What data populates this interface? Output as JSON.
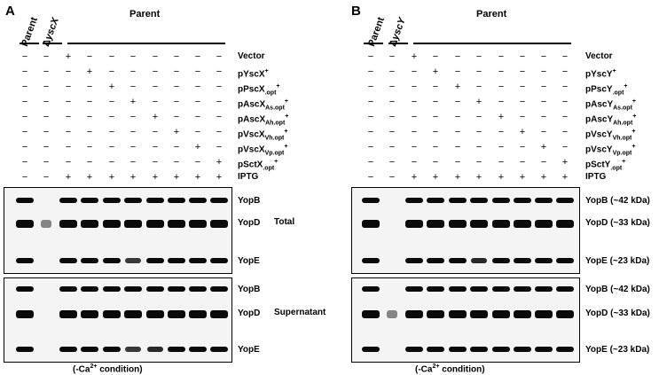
{
  "panels": [
    {
      "id": "A",
      "letter": "A",
      "lane_headers": {
        "parent1": "Parent",
        "mutant_prefix": "Δ",
        "mutant": "yscX",
        "parent_group": "Parent"
      },
      "rows": [
        {
          "label_html": "Vector",
          "symbols": [
            "−",
            "−",
            "+",
            "−",
            "−",
            "−",
            "−",
            "−",
            "−",
            "−"
          ]
        },
        {
          "label_html": "pYscX<sup>+</sup>",
          "symbols": [
            "−",
            "−",
            "−",
            "+",
            "−",
            "−",
            "−",
            "−",
            "−",
            "−"
          ]
        },
        {
          "label_html": "pPscX<sub>.opt</sub><sup>+</sup>",
          "symbols": [
            "−",
            "−",
            "−",
            "−",
            "+",
            "−",
            "−",
            "−",
            "−",
            "−"
          ]
        },
        {
          "label_html": "pAscX<sub>As.opt</sub><sup>+</sup>",
          "symbols": [
            "−",
            "−",
            "−",
            "−",
            "−",
            "+",
            "−",
            "−",
            "−",
            "−"
          ]
        },
        {
          "label_html": "pAscX<sub>Ah.opt</sub><sup>+</sup>",
          "symbols": [
            "−",
            "−",
            "−",
            "−",
            "−",
            "−",
            "+",
            "−",
            "−",
            "−"
          ]
        },
        {
          "label_html": "pVscX<sub>Vh.opt</sub><sup>+</sup>",
          "symbols": [
            "−",
            "−",
            "−",
            "−",
            "−",
            "−",
            "−",
            "+",
            "−",
            "−"
          ]
        },
        {
          "label_html": "pVscX<sub>Vp.opt</sub><sup>+</sup>",
          "symbols": [
            "−",
            "−",
            "−",
            "−",
            "−",
            "−",
            "−",
            "−",
            "+",
            "−"
          ]
        },
        {
          "label_html": "pSctX<sub>.opt</sub><sup>+</sup>",
          "symbols": [
            "−",
            "−",
            "−",
            "−",
            "−",
            "−",
            "−",
            "−",
            "−",
            "+"
          ]
        },
        {
          "label_html": "IPTG",
          "symbols": [
            "−",
            "−",
            "+",
            "+",
            "+",
            "+",
            "+",
            "+",
            "+",
            "+"
          ]
        }
      ],
      "blots": [
        {
          "section_label": "Total",
          "bands": [
            {
              "label": "YopB",
              "lanes": [
                1,
                0,
                1,
                1,
                1,
                1,
                1,
                1,
                1,
                1
              ]
            },
            {
              "label": "YopD",
              "lanes": [
                1,
                0.2,
                1,
                1,
                1,
                1,
                1,
                1,
                1,
                1
              ]
            },
            {
              "label": "YopE",
              "lanes": [
                1,
                0,
                1,
                1,
                1,
                0.7,
                1,
                1,
                1,
                1
              ]
            }
          ]
        },
        {
          "section_label": "Supernatant",
          "bands": [
            {
              "label": "YopB",
              "lanes": [
                1,
                0,
                1,
                1,
                1,
                1,
                1,
                1,
                1,
                1
              ]
            },
            {
              "label": "YopD",
              "lanes": [
                1,
                0,
                1,
                1,
                1,
                1,
                1,
                1,
                1,
                1
              ]
            },
            {
              "label": "YopE",
              "lanes": [
                1,
                0,
                1,
                1,
                1,
                0.7,
                0.8,
                1,
                1,
                1
              ]
            }
          ]
        }
      ],
      "condition": {
        "prefix": "(-Ca",
        "sup": "2+",
        "suffix": " condition)"
      }
    },
    {
      "id": "B",
      "letter": "B",
      "lane_headers": {
        "parent1": "Parent",
        "mutant_prefix": "Δ",
        "mutant": "yscY",
        "parent_group": "Parent"
      },
      "rows": [
        {
          "label_html": "Vector",
          "symbols": [
            "−",
            "−",
            "+",
            "−",
            "−",
            "−",
            "−",
            "−",
            "−",
            "−"
          ]
        },
        {
          "label_html": "pYscY<sup>+</sup>",
          "symbols": [
            "−",
            "−",
            "−",
            "+",
            "−",
            "−",
            "−",
            "−",
            "−",
            "−"
          ]
        },
        {
          "label_html": "pPscY<sub>.opt</sub><sup>+</sup>",
          "symbols": [
            "−",
            "−",
            "−",
            "−",
            "+",
            "−",
            "−",
            "−",
            "−",
            "−"
          ]
        },
        {
          "label_html": "pAscY<sub>As.opt</sub><sup>+</sup>",
          "symbols": [
            "−",
            "−",
            "−",
            "−",
            "−",
            "+",
            "−",
            "−",
            "−",
            "−"
          ]
        },
        {
          "label_html": "pAscY<sub>Ah.opt</sub><sup>+</sup>",
          "symbols": [
            "−",
            "−",
            "−",
            "−",
            "−",
            "−",
            "+",
            "−",
            "−",
            "−"
          ]
        },
        {
          "label_html": "pVscY<sub>Vh.opt</sub><sup>+</sup>",
          "symbols": [
            "−",
            "−",
            "−",
            "−",
            "−",
            "−",
            "−",
            "+",
            "−",
            "−"
          ]
        },
        {
          "label_html": "pVscY<sub>Vp.opt</sub><sup>+</sup>",
          "symbols": [
            "−",
            "−",
            "−",
            "−",
            "−",
            "−",
            "−",
            "−",
            "+",
            "−"
          ]
        },
        {
          "label_html": "pSctY<sub>.opt</sub><sup>+</sup>",
          "symbols": [
            "−",
            "−",
            "−",
            "−",
            "−",
            "−",
            "−",
            "−",
            "−",
            "+"
          ]
        },
        {
          "label_html": "IPTG",
          "symbols": [
            "−",
            "−",
            "+",
            "+",
            "+",
            "+",
            "+",
            "+",
            "+",
            "+"
          ]
        }
      ],
      "blots": [
        {
          "section_label": "",
          "bands": [
            {
              "label": "YopB (~42 kDa)",
              "lanes": [
                1,
                0,
                1,
                1,
                1,
                1,
                1,
                1,
                1,
                1
              ]
            },
            {
              "label": "YopD (~33 kDa)",
              "lanes": [
                1,
                0,
                1,
                1,
                1,
                1,
                1,
                1,
                1,
                1
              ]
            },
            {
              "label": "YopE (~23 kDa)",
              "lanes": [
                1,
                0,
                1,
                1,
                1,
                0.8,
                1,
                1,
                1,
                1
              ]
            }
          ]
        },
        {
          "section_label": "",
          "bands": [
            {
              "label": "YopB (~42 kDa)",
              "lanes": [
                1,
                0,
                1,
                1,
                1,
                1,
                1,
                1,
                1,
                1
              ]
            },
            {
              "label": "YopD (~33 kDa)",
              "lanes": [
                1,
                0.2,
                1,
                1,
                1,
                1,
                1,
                1,
                1,
                1
              ]
            },
            {
              "label": "YopE (~23 kDa)",
              "lanes": [
                1,
                0,
                1,
                1,
                1,
                1,
                1,
                1,
                1,
                1
              ]
            }
          ]
        }
      ],
      "condition": {
        "prefix": "(-Ca",
        "sup": "2+",
        "suffix": " condition)"
      }
    }
  ]
}
